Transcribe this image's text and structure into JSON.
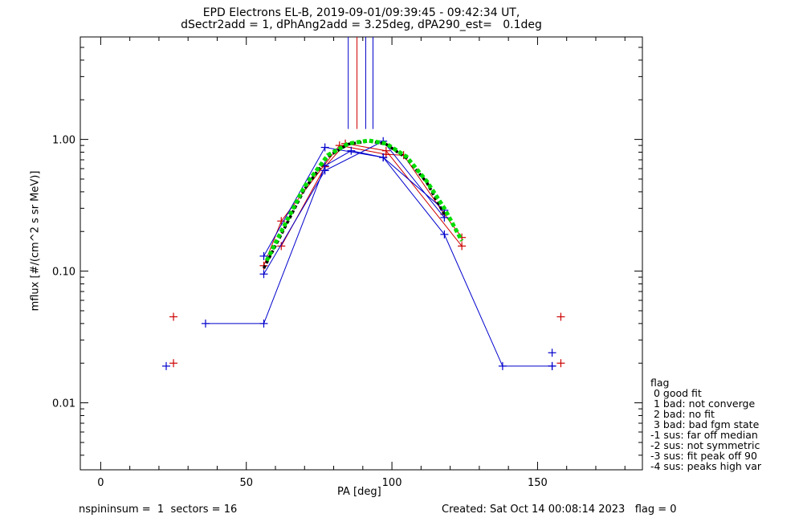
{
  "header": {
    "title_line1": "EPD Electrons EL-B, 2019-09-01/09:39:45 - 09:42:34 UT,",
    "title_line2": "dSectr2add = 1, dPhAng2add = 3.25deg, dPA290_est=   0.1deg"
  },
  "footer": {
    "left": "nspininsum =  1  sectors = 16",
    "right": "Created: Sat Oct 14 00:08:14 2023   flag = 0"
  },
  "legend": {
    "title": "flag",
    "items": [
      " 0 good fit",
      " 1 bad: not converge",
      " 2 bad: no fit",
      " 3 bad: bad fgm state",
      "-1 sus: far off median",
      "-2 sus: not symmetric",
      "-3 sus: fit peak off 90",
      "-4 sus: peaks high var"
    ]
  },
  "colors": {
    "axis": "#000000",
    "red": "#cc0000",
    "blue": "#0000cc",
    "green": "#00dd00",
    "black": "#000000"
  },
  "chart_data": {
    "type": "line",
    "xlabel": "PA [deg]",
    "ylabel": "mflux [#/(cm^2 s sr MeV)]",
    "xlim": [
      -7,
      186
    ],
    "ylim": [
      0.0031,
      6.0
    ],
    "yscale": "log",
    "x_ticks": [
      0,
      50,
      100,
      150
    ],
    "x_tick_labels": [
      "0",
      "50",
      "100",
      "150"
    ],
    "y_ticks": [
      0.01,
      0.1,
      1.0
    ],
    "y_tick_labels": [
      "0.01",
      "0.10",
      "1.00"
    ],
    "vlines": [
      {
        "x": 85,
        "color": "blue",
        "ymin": 1.2
      },
      {
        "x": 88,
        "color": "red",
        "ymin": 1.2
      },
      {
        "x": 91,
        "color": "blue",
        "ymin": 1.2
      },
      {
        "x": 93.5,
        "color": "blue",
        "ymin": 1.2
      }
    ],
    "series": [
      {
        "color": "red",
        "style": "line",
        "points": [
          [
            56,
            0.11
          ],
          [
            62,
            0.24
          ],
          [
            82,
            0.9
          ],
          [
            98,
            0.77
          ],
          [
            104,
            0.76
          ],
          [
            118,
            0.27
          ],
          [
            124,
            0.18
          ]
        ]
      },
      {
        "color": "red",
        "style": "line",
        "points": [
          [
            62,
            0.155
          ],
          [
            77,
            0.62
          ],
          [
            84,
            0.93
          ],
          [
            98,
            0.82
          ],
          [
            124,
            0.155
          ]
        ]
      },
      {
        "color": "blue",
        "style": "line",
        "points": [
          [
            56,
            0.13
          ],
          [
            77,
            0.87
          ],
          [
            97,
            0.73
          ],
          [
            118,
            0.29
          ]
        ]
      },
      {
        "color": "blue",
        "style": "line",
        "points": [
          [
            56,
            0.095
          ],
          [
            77,
            0.58
          ],
          [
            97,
            0.97
          ],
          [
            118,
            0.255
          ]
        ]
      },
      {
        "color": "blue",
        "style": "line",
        "points": [
          [
            36,
            0.04
          ],
          [
            56,
            0.04
          ],
          [
            77,
            0.63
          ],
          [
            86,
            0.82
          ],
          [
            97,
            0.73
          ],
          [
            118,
            0.19
          ],
          [
            138,
            0.019
          ],
          [
            155,
            0.019
          ]
        ]
      },
      {
        "color": "black",
        "style": "dashed",
        "points": [
          [
            56,
            0.105
          ],
          [
            62,
            0.19
          ],
          [
            70,
            0.42
          ],
          [
            78,
            0.74
          ],
          [
            85,
            0.92
          ],
          [
            92,
            0.97
          ],
          [
            98,
            0.92
          ],
          [
            105,
            0.72
          ],
          [
            112,
            0.47
          ],
          [
            118,
            0.27
          ]
        ]
      },
      {
        "color": "green",
        "style": "dotted",
        "points": [
          [
            57,
            0.12
          ],
          [
            62,
            0.2
          ],
          [
            70,
            0.44
          ],
          [
            78,
            0.76
          ],
          [
            85,
            0.93
          ],
          [
            92,
            0.98
          ],
          [
            98,
            0.93
          ],
          [
            105,
            0.74
          ],
          [
            112,
            0.48
          ],
          [
            118,
            0.3
          ],
          [
            124,
            0.17
          ]
        ]
      }
    ],
    "markers": [
      {
        "x": 25,
        "y": 0.045,
        "color": "red"
      },
      {
        "x": 25,
        "y": 0.02,
        "color": "red"
      },
      {
        "x": 22.5,
        "y": 0.019,
        "color": "blue"
      },
      {
        "x": 158,
        "y": 0.045,
        "color": "red"
      },
      {
        "x": 158,
        "y": 0.02,
        "color": "red"
      },
      {
        "x": 155,
        "y": 0.024,
        "color": "blue"
      },
      {
        "x": 155,
        "y": 0.019,
        "color": "blue"
      }
    ]
  }
}
